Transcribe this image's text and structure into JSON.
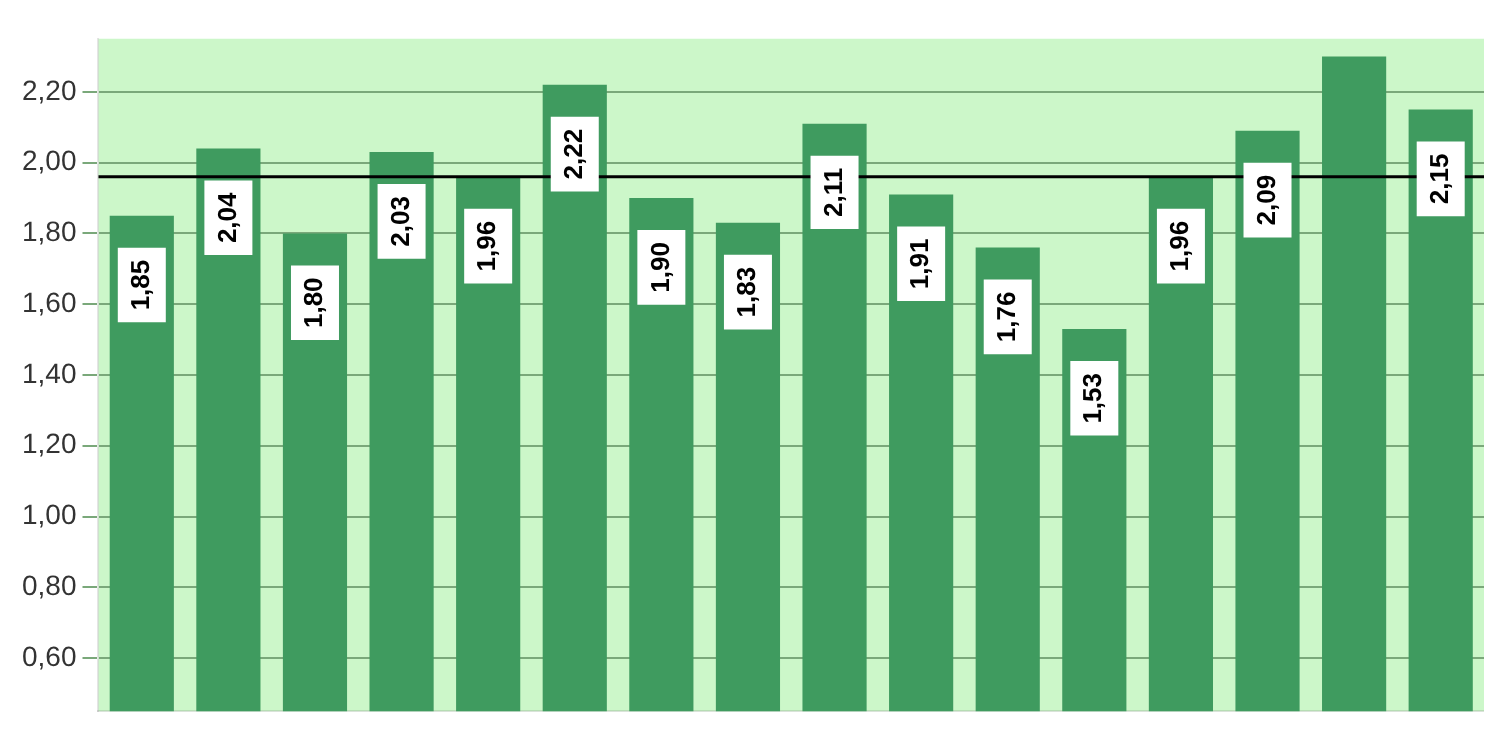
{
  "chart_data": {
    "type": "bar",
    "categories": [
      null,
      null,
      null,
      null,
      null,
      null,
      null,
      null,
      null,
      null,
      null,
      null,
      null,
      null,
      null,
      null
    ],
    "values": [
      1.85,
      2.04,
      1.8,
      2.03,
      1.96,
      2.22,
      1.9,
      1.83,
      2.11,
      1.91,
      1.76,
      1.53,
      1.96,
      2.09,
      2.3,
      2.15
    ],
    "value_labels": [
      "1,85",
      "2,04",
      "1,80",
      "2,03",
      "1,96",
      "2,22",
      "1,90",
      "1,83",
      "2,11",
      "1,91",
      "1,76",
      "1,53",
      "1,96",
      "2,09",
      null,
      "2,15"
    ],
    "color": "#3f9b5f",
    "ylim": [
      0.45,
      2.35
    ],
    "yticks": [
      {
        "value": 0.6,
        "label": "0,60"
      },
      {
        "value": 0.8,
        "label": "0,80"
      },
      {
        "value": 1.0,
        "label": "1,00"
      },
      {
        "value": 1.2,
        "label": "1,20"
      },
      {
        "value": 1.4,
        "label": "1,40"
      },
      {
        "value": 1.6,
        "label": "1,60"
      },
      {
        "value": 1.8,
        "label": "1,80"
      },
      {
        "value": 2.0,
        "label": "2,00"
      },
      {
        "value": 2.2,
        "label": "2,20"
      }
    ],
    "ref_lines": [
      {
        "axis": "y",
        "value": 1.96,
        "color": "#000000"
      }
    ],
    "grid": "y",
    "legend": false
  }
}
